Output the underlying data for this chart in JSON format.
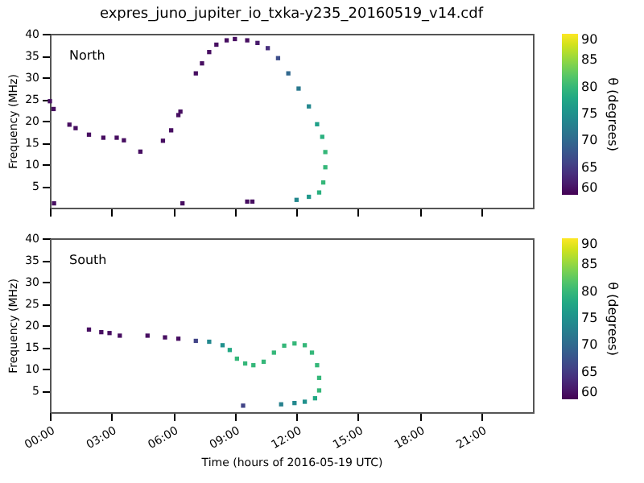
{
  "chart_data": [
    {
      "type": "scatter",
      "title": "expres_juno_jupiter_io_txka-y235_20160519_v14.cdf",
      "ylabel": "Frequency (MHz)",
      "clabel": "θ (degrees)",
      "annotations": [
        "North"
      ],
      "tick_labels": "y",
      "x": [
        0.0,
        0.18,
        0.95,
        1.25,
        1.9,
        2.6,
        3.25,
        3.6,
        4.4,
        5.5,
        5.9,
        6.25,
        6.35,
        0.2,
        6.45,
        7.1,
        7.4,
        7.75,
        8.1,
        8.6,
        9.0,
        9.6,
        10.1,
        10.6,
        11.1,
        11.6,
        12.1,
        12.6,
        13.0,
        13.25,
        13.4,
        13.4,
        13.3,
        13.1,
        12.6,
        12.0,
        9.6,
        9.85
      ],
      "values": [
        24.5,
        22.7,
        19.1,
        18.3,
        16.8,
        16.1,
        16.1,
        15.5,
        12.9,
        15.4,
        17.8,
        21.3,
        22.1,
        1.0,
        1.0,
        30.9,
        33.2,
        35.8,
        37.5,
        38.5,
        38.8,
        38.5,
        37.9,
        36.7,
        34.4,
        30.9,
        27.4,
        23.3,
        19.2,
        16.3,
        12.8,
        9.3,
        5.8,
        3.5,
        2.5,
        1.8,
        1.4,
        1.4
      ],
      "cvalues": [
        61,
        61,
        61,
        61,
        61,
        61,
        61,
        61,
        61,
        61,
        61,
        61,
        61,
        61,
        61,
        61,
        61,
        61,
        61,
        61,
        61,
        61,
        62,
        64,
        67,
        70,
        72,
        74,
        77,
        79,
        80,
        80,
        80,
        79,
        76,
        74,
        61,
        61
      ],
      "xlim": [
        0,
        23.5
      ],
      "ylim": [
        0,
        40
      ],
      "yticks": [
        5,
        10,
        15,
        20,
        25,
        30,
        35,
        40
      ],
      "xticks": [
        {
          "value": 0,
          "label": null
        },
        {
          "value": 3,
          "label": null
        },
        {
          "value": 6,
          "label": null
        },
        {
          "value": 9,
          "label": null
        },
        {
          "value": 12,
          "label": null
        },
        {
          "value": 15,
          "label": null
        },
        {
          "value": 18,
          "label": null
        },
        {
          "value": 21,
          "label": null
        }
      ],
      "clim": [
        60,
        90
      ],
      "cticks": [
        60,
        65,
        70,
        75,
        80,
        85,
        90
      ]
    },
    {
      "type": "scatter",
      "xlabel": "Time (hours of 2016-05-19 UTC)",
      "ylabel": "Frequency (MHz)",
      "clabel": "θ (degrees)",
      "annotations": [
        "South"
      ],
      "x": [
        1.9,
        2.5,
        2.9,
        3.4,
        4.75,
        5.6,
        6.25,
        7.1,
        7.75,
        8.4,
        8.75,
        9.1,
        9.5,
        9.9,
        10.4,
        10.9,
        11.4,
        11.9,
        12.4,
        12.75,
        13.0,
        13.1,
        13.1,
        12.9,
        12.4,
        11.9,
        11.25,
        9.4
      ],
      "values": [
        19.0,
        18.4,
        18.2,
        17.6,
        17.6,
        17.2,
        16.9,
        16.4,
        16.2,
        15.4,
        14.3,
        12.3,
        11.2,
        10.8,
        11.6,
        13.7,
        15.3,
        15.8,
        15.4,
        13.7,
        10.8,
        7.9,
        5.0,
        3.2,
        2.4,
        2.1,
        1.8,
        1.5
      ],
      "cvalues": [
        61,
        61,
        61,
        61,
        61,
        61,
        61,
        66,
        74,
        75,
        78,
        80,
        80,
        80,
        80,
        80,
        80,
        80,
        80,
        80,
        80,
        80,
        80,
        78,
        75,
        74,
        73,
        66
      ],
      "xlim": [
        0,
        23.5
      ],
      "ylim": [
        0,
        40
      ],
      "yticks": [
        5,
        10,
        15,
        20,
        25,
        30,
        35,
        40
      ],
      "xticks": [
        {
          "value": 0,
          "label": "00:00"
        },
        {
          "value": 3,
          "label": "03:00"
        },
        {
          "value": 6,
          "label": "06:00"
        },
        {
          "value": 9,
          "label": "09:00"
        },
        {
          "value": 12,
          "label": "12:00"
        },
        {
          "value": 15,
          "label": "15:00"
        },
        {
          "value": 18,
          "label": "18:00"
        },
        {
          "value": 21,
          "label": "21:00"
        }
      ],
      "clim": [
        60,
        90
      ],
      "cticks": [
        60,
        65,
        70,
        75,
        80,
        85,
        90
      ]
    }
  ]
}
